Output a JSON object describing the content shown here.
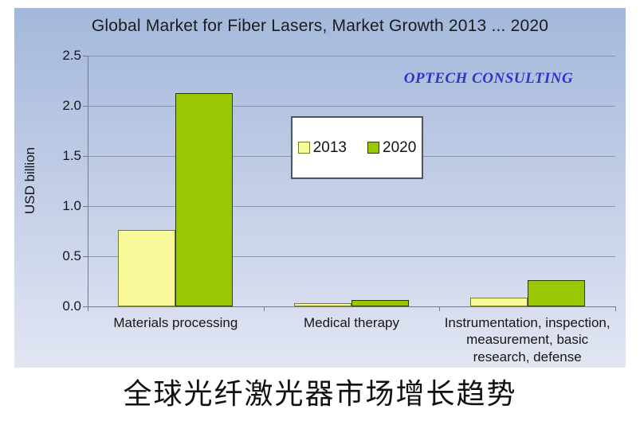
{
  "title": "Global Market for Fiber Lasers, Market Growth 2013 ... 2020",
  "watermark": {
    "text": "OPTECH CONSULTING",
    "color": "#2b36c9"
  },
  "caption": {
    "text": "全球光纤激光器市场增长趋势"
  },
  "axis": {
    "grid_color": "#8b96a8",
    "axis_color": "#6f7b8f",
    "tick_label_color": "#16161e"
  },
  "panel_colors": {
    "top": "#a3b8db",
    "bottom": "#e2e6f3"
  },
  "chart_data": {
    "type": "bar",
    "title": "Global Market for Fiber Lasers, Market Growth 2013 ... 2020",
    "xlabel": "",
    "ylabel": "USD billion",
    "ylim": [
      0,
      2.5
    ],
    "ytick_labels": [
      "2.5",
      "2.0",
      "1.5",
      "1.0",
      "0.5",
      "0.0"
    ],
    "grid": true,
    "legend_position": "upper-center-inside",
    "categories": [
      "Materials processing",
      "Medical therapy",
      "Instrumentation, inspection, measurement, basic research, defense"
    ],
    "series": [
      {
        "name": "2013",
        "color": "#f9fb9b",
        "border_color": "#757d1e",
        "values": [
          0.76,
          0.03,
          0.09
        ]
      },
      {
        "name": "2020",
        "color": "#99c701",
        "border_color": "#2c3a00",
        "values": [
          2.13,
          0.06,
          0.26
        ]
      }
    ],
    "annotations": [
      "OPTECH CONSULTING"
    ]
  }
}
